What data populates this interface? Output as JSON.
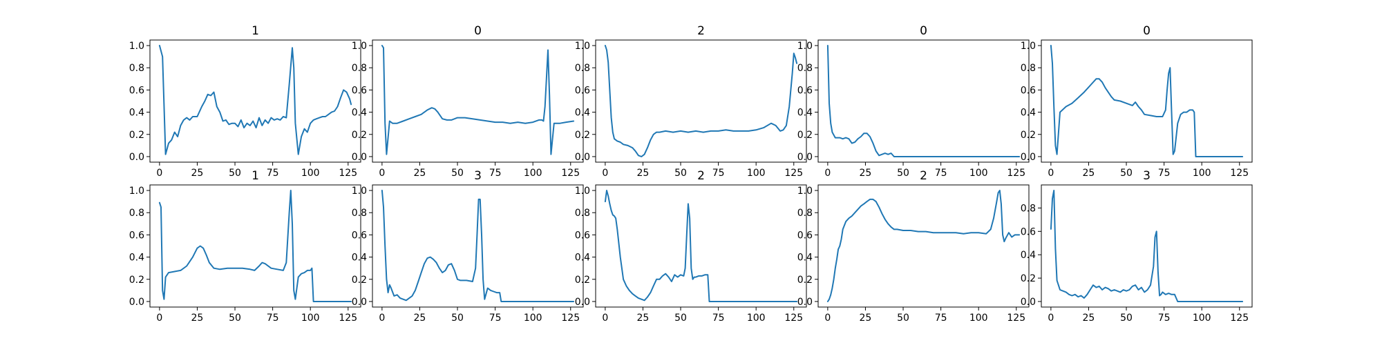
{
  "chart_data": [
    {
      "type": "line",
      "title": "1",
      "xlim": [
        0,
        127
      ],
      "ylim": [
        0,
        1.0
      ],
      "xticks": [
        0,
        25,
        50,
        75,
        100,
        125
      ],
      "yticks": [
        0,
        0.2,
        0.4,
        0.6,
        0.8,
        1.0
      ],
      "x": [
        0,
        2,
        4,
        6,
        8,
        10,
        12,
        14,
        16,
        18,
        20,
        22,
        25,
        28,
        30,
        32,
        34,
        36,
        38,
        40,
        42,
        44,
        46,
        48,
        50,
        52,
        54,
        56,
        58,
        60,
        62,
        64,
        66,
        68,
        70,
        72,
        74,
        76,
        78,
        80,
        82,
        84,
        86,
        88,
        89,
        90,
        92,
        94,
        96,
        98,
        100,
        102,
        104,
        106,
        108,
        110,
        112,
        114,
        116,
        118,
        120,
        122,
        124,
        126,
        127
      ],
      "y": [
        1.0,
        0.9,
        0.02,
        0.12,
        0.15,
        0.22,
        0.18,
        0.28,
        0.33,
        0.35,
        0.33,
        0.36,
        0.36,
        0.45,
        0.5,
        0.56,
        0.55,
        0.58,
        0.45,
        0.4,
        0.32,
        0.33,
        0.29,
        0.3,
        0.3,
        0.27,
        0.33,
        0.26,
        0.3,
        0.28,
        0.32,
        0.26,
        0.35,
        0.28,
        0.33,
        0.3,
        0.35,
        0.33,
        0.34,
        0.33,
        0.36,
        0.35,
        0.65,
        0.98,
        0.8,
        0.3,
        0.02,
        0.18,
        0.25,
        0.22,
        0.3,
        0.33,
        0.34,
        0.35,
        0.36,
        0.36,
        0.38,
        0.4,
        0.41,
        0.45,
        0.53,
        0.6,
        0.58,
        0.52,
        0.47
      ]
    },
    {
      "type": "line",
      "title": "0",
      "xlim": [
        0,
        127
      ],
      "ylim": [
        0,
        1.0
      ],
      "xticks": [
        0,
        25,
        50,
        75,
        100,
        125
      ],
      "yticks": [
        0,
        0.2,
        0.4,
        0.6,
        0.8,
        1.0
      ],
      "x": [
        0,
        1,
        2,
        3,
        5,
        7,
        10,
        14,
        18,
        22,
        26,
        30,
        33,
        35,
        37,
        40,
        43,
        46,
        50,
        55,
        60,
        65,
        70,
        75,
        80,
        85,
        90,
        95,
        100,
        104,
        106,
        107,
        108,
        109,
        110,
        111,
        112,
        114,
        118,
        122,
        127
      ],
      "y": [
        1.0,
        0.98,
        0.3,
        0.02,
        0.32,
        0.3,
        0.3,
        0.32,
        0.34,
        0.36,
        0.38,
        0.42,
        0.44,
        0.43,
        0.4,
        0.34,
        0.33,
        0.33,
        0.35,
        0.35,
        0.34,
        0.33,
        0.32,
        0.31,
        0.31,
        0.3,
        0.31,
        0.3,
        0.31,
        0.33,
        0.33,
        0.32,
        0.45,
        0.7,
        0.96,
        0.55,
        0.02,
        0.3,
        0.3,
        0.31,
        0.32
      ]
    },
    {
      "type": "line",
      "title": "2",
      "xlim": [
        0,
        127
      ],
      "ylim": [
        0,
        1.0
      ],
      "xticks": [
        0,
        25,
        50,
        75,
        100,
        125
      ],
      "yticks": [
        0,
        0.2,
        0.4,
        0.6,
        0.8,
        1.0
      ],
      "x": [
        0,
        1,
        2,
        3,
        4,
        5,
        6,
        8,
        10,
        12,
        15,
        18,
        20,
        22,
        24,
        26,
        28,
        30,
        32,
        34,
        36,
        40,
        45,
        50,
        55,
        60,
        65,
        70,
        75,
        80,
        85,
        90,
        95,
        100,
        105,
        110,
        113,
        116,
        118,
        120,
        122,
        124,
        125,
        126,
        127
      ],
      "y": [
        1.0,
        0.96,
        0.85,
        0.6,
        0.35,
        0.22,
        0.16,
        0.14,
        0.13,
        0.11,
        0.1,
        0.08,
        0.05,
        0.01,
        0.0,
        0.02,
        0.08,
        0.15,
        0.2,
        0.22,
        0.22,
        0.23,
        0.22,
        0.23,
        0.22,
        0.23,
        0.22,
        0.23,
        0.23,
        0.24,
        0.23,
        0.23,
        0.23,
        0.24,
        0.26,
        0.3,
        0.28,
        0.23,
        0.24,
        0.28,
        0.45,
        0.75,
        0.93,
        0.89,
        0.84
      ]
    },
    {
      "type": "line",
      "title": "0",
      "xlim": [
        0,
        127
      ],
      "ylim": [
        0,
        1.0
      ],
      "xticks": [
        0,
        25,
        50,
        75,
        100,
        125
      ],
      "yticks": [
        0,
        0.2,
        0.4,
        0.6,
        0.8,
        1.0
      ],
      "x": [
        0,
        1,
        2,
        3,
        5,
        8,
        10,
        12,
        14,
        16,
        18,
        20,
        22,
        24,
        26,
        28,
        30,
        32,
        34,
        36,
        38,
        40,
        42,
        44,
        46,
        50,
        60,
        70,
        80,
        90,
        100,
        110,
        120,
        127
      ],
      "y": [
        1.0,
        0.48,
        0.3,
        0.22,
        0.17,
        0.17,
        0.16,
        0.17,
        0.16,
        0.12,
        0.13,
        0.16,
        0.18,
        0.21,
        0.21,
        0.18,
        0.12,
        0.05,
        0.01,
        0.02,
        0.03,
        0.02,
        0.03,
        0.0,
        0.0,
        0.0,
        0.0,
        0.0,
        0.0,
        0.0,
        0.0,
        0.0,
        0.0,
        0.0
      ]
    },
    {
      "type": "line",
      "title": "0",
      "xlim": [
        0,
        127
      ],
      "ylim": [
        0,
        1.0
      ],
      "xticks": [
        0,
        25,
        50,
        75,
        100,
        125
      ],
      "yticks": [
        0,
        0.2,
        0.4,
        0.6,
        0.8,
        1.0
      ],
      "x": [
        0,
        1,
        2,
        3,
        4,
        6,
        10,
        14,
        18,
        22,
        26,
        30,
        32,
        34,
        36,
        38,
        40,
        42,
        46,
        50,
        54,
        56,
        58,
        60,
        62,
        66,
        70,
        74,
        76,
        77,
        78,
        79,
        80,
        81,
        82,
        84,
        86,
        88,
        90,
        92,
        94,
        95,
        96,
        100,
        110,
        120,
        127
      ],
      "y": [
        1.0,
        0.84,
        0.45,
        0.1,
        0.02,
        0.4,
        0.45,
        0.48,
        0.53,
        0.58,
        0.64,
        0.7,
        0.7,
        0.67,
        0.62,
        0.58,
        0.54,
        0.51,
        0.5,
        0.48,
        0.46,
        0.49,
        0.45,
        0.42,
        0.38,
        0.37,
        0.36,
        0.36,
        0.42,
        0.6,
        0.75,
        0.8,
        0.4,
        0.02,
        0.05,
        0.3,
        0.38,
        0.4,
        0.4,
        0.42,
        0.42,
        0.4,
        0.0,
        0.0,
        0.0,
        0.0,
        0.0
      ]
    },
    {
      "type": "line",
      "title": "1",
      "xlim": [
        0,
        127
      ],
      "ylim": [
        0,
        1.0
      ],
      "xticks": [
        0,
        25,
        50,
        75,
        100,
        125
      ],
      "yticks": [
        0,
        0.2,
        0.4,
        0.6,
        0.8,
        1.0
      ],
      "x": [
        0,
        1,
        2,
        3,
        4,
        6,
        10,
        14,
        18,
        22,
        25,
        27,
        29,
        31,
        33,
        36,
        40,
        45,
        50,
        55,
        60,
        63,
        66,
        68,
        70,
        74,
        78,
        82,
        84,
        86,
        87,
        88,
        89,
        90,
        92,
        94,
        96,
        98,
        100,
        101,
        102,
        104,
        110,
        120,
        127
      ],
      "y": [
        0.89,
        0.85,
        0.1,
        0.02,
        0.22,
        0.26,
        0.27,
        0.28,
        0.32,
        0.4,
        0.48,
        0.5,
        0.48,
        0.42,
        0.35,
        0.3,
        0.29,
        0.3,
        0.3,
        0.3,
        0.29,
        0.28,
        0.32,
        0.35,
        0.34,
        0.3,
        0.29,
        0.28,
        0.35,
        0.8,
        1.0,
        0.7,
        0.1,
        0.02,
        0.22,
        0.25,
        0.26,
        0.28,
        0.28,
        0.3,
        0.0,
        0.0,
        0.0,
        0.0,
        0.0
      ]
    },
    {
      "type": "line",
      "title": "3",
      "xlim": [
        0,
        127
      ],
      "ylim": [
        0,
        1.0
      ],
      "xticks": [
        0,
        25,
        50,
        75,
        100,
        125
      ],
      "yticks": [
        0,
        0.2,
        0.4,
        0.6,
        0.8,
        1.0
      ],
      "x": [
        0,
        1,
        2,
        3,
        4,
        5,
        6,
        8,
        10,
        12,
        14,
        16,
        18,
        20,
        22,
        24,
        26,
        28,
        30,
        32,
        34,
        36,
        38,
        40,
        42,
        44,
        46,
        48,
        50,
        52,
        56,
        60,
        62,
        63,
        64,
        65,
        66,
        67,
        68,
        70,
        72,
        74,
        76,
        78,
        79,
        80,
        90,
        100,
        110,
        120,
        127
      ],
      "y": [
        1.0,
        0.85,
        0.5,
        0.2,
        0.08,
        0.15,
        0.12,
        0.05,
        0.06,
        0.03,
        0.02,
        0.01,
        0.03,
        0.05,
        0.1,
        0.18,
        0.26,
        0.34,
        0.39,
        0.4,
        0.38,
        0.35,
        0.3,
        0.26,
        0.28,
        0.33,
        0.34,
        0.28,
        0.2,
        0.19,
        0.19,
        0.18,
        0.3,
        0.6,
        0.92,
        0.92,
        0.6,
        0.2,
        0.02,
        0.12,
        0.1,
        0.09,
        0.08,
        0.08,
        0.0,
        0.0,
        0.0,
        0.0,
        0.0,
        0.0,
        0.0
      ]
    },
    {
      "type": "line",
      "title": "2",
      "xlim": [
        0,
        127
      ],
      "ylim": [
        0,
        1.0
      ],
      "xticks": [
        0,
        25,
        50,
        75,
        100,
        125
      ],
      "yticks": [
        0,
        0.2,
        0.4,
        0.6,
        0.8,
        1.0
      ],
      "x": [
        0,
        1,
        2,
        3,
        4,
        5,
        6,
        7,
        8,
        10,
        12,
        14,
        16,
        18,
        20,
        22,
        24,
        26,
        28,
        30,
        32,
        34,
        36,
        38,
        40,
        42,
        44,
        46,
        48,
        50,
        52,
        53,
        54,
        55,
        56,
        57,
        58,
        59,
        60,
        62,
        64,
        66,
        68,
        69,
        70,
        80,
        90,
        100,
        110,
        120,
        127
      ],
      "y": [
        0.9,
        1.0,
        0.95,
        0.88,
        0.82,
        0.78,
        0.77,
        0.75,
        0.65,
        0.4,
        0.2,
        0.14,
        0.1,
        0.07,
        0.05,
        0.03,
        0.02,
        0.01,
        0.04,
        0.08,
        0.14,
        0.2,
        0.2,
        0.23,
        0.25,
        0.22,
        0.18,
        0.24,
        0.22,
        0.24,
        0.23,
        0.3,
        0.6,
        0.88,
        0.75,
        0.3,
        0.2,
        0.22,
        0.22,
        0.23,
        0.23,
        0.24,
        0.24,
        0.0,
        0.0,
        0.0,
        0.0,
        0.0,
        0.0,
        0.0,
        0.0
      ]
    },
    {
      "type": "line",
      "title": "2",
      "xlim": [
        0,
        127
      ],
      "ylim": [
        0,
        1.0
      ],
      "xticks": [
        0,
        25,
        50,
        75,
        100,
        125
      ],
      "yticks": [
        0,
        0.2,
        0.4,
        0.6,
        0.8,
        1.0
      ],
      "x": [
        0,
        1,
        2,
        3,
        4,
        5,
        6,
        7,
        8,
        9,
        10,
        12,
        14,
        16,
        18,
        20,
        22,
        24,
        26,
        28,
        30,
        32,
        34,
        36,
        38,
        40,
        42,
        44,
        46,
        50,
        55,
        60,
        65,
        70,
        75,
        80,
        85,
        90,
        95,
        100,
        105,
        108,
        110,
        112,
        113,
        114,
        115,
        116,
        117,
        118,
        120,
        122,
        124,
        127
      ],
      "y": [
        0.0,
        0.02,
        0.06,
        0.12,
        0.2,
        0.3,
        0.38,
        0.47,
        0.5,
        0.56,
        0.65,
        0.72,
        0.75,
        0.77,
        0.8,
        0.83,
        0.86,
        0.88,
        0.9,
        0.92,
        0.92,
        0.9,
        0.85,
        0.79,
        0.74,
        0.7,
        0.67,
        0.65,
        0.65,
        0.64,
        0.64,
        0.63,
        0.63,
        0.62,
        0.62,
        0.62,
        0.62,
        0.61,
        0.62,
        0.62,
        0.61,
        0.65,
        0.75,
        0.9,
        0.98,
        1.0,
        0.88,
        0.6,
        0.54,
        0.57,
        0.62,
        0.58,
        0.6,
        0.6
      ]
    },
    {
      "type": "line",
      "title": "3",
      "xlim": [
        0,
        127
      ],
      "ylim": [
        0,
        0.95
      ],
      "xticks": [
        0,
        25,
        50,
        75,
        100,
        125
      ],
      "yticks": [
        0,
        0.2,
        0.4,
        0.6,
        0.8
      ],
      "x": [
        0,
        1,
        2,
        3,
        4,
        5,
        6,
        8,
        10,
        12,
        14,
        16,
        18,
        20,
        22,
        24,
        26,
        28,
        30,
        32,
        34,
        36,
        38,
        40,
        42,
        44,
        46,
        48,
        50,
        52,
        54,
        56,
        58,
        60,
        62,
        64,
        66,
        68,
        69,
        70,
        71,
        72,
        73,
        74,
        76,
        78,
        80,
        82,
        84,
        86,
        90,
        100,
        110,
        120,
        127
      ],
      "y": [
        0.62,
        0.88,
        0.95,
        0.45,
        0.18,
        0.14,
        0.1,
        0.09,
        0.08,
        0.06,
        0.05,
        0.06,
        0.04,
        0.05,
        0.03,
        0.06,
        0.1,
        0.14,
        0.12,
        0.13,
        0.1,
        0.12,
        0.11,
        0.09,
        0.1,
        0.09,
        0.08,
        0.1,
        0.09,
        0.1,
        0.13,
        0.14,
        0.1,
        0.12,
        0.08,
        0.1,
        0.14,
        0.3,
        0.55,
        0.6,
        0.25,
        0.05,
        0.06,
        0.08,
        0.06,
        0.07,
        0.06,
        0.06,
        0.0,
        0.0,
        0.0,
        0.0,
        0.0,
        0.0,
        0.0
      ]
    }
  ]
}
